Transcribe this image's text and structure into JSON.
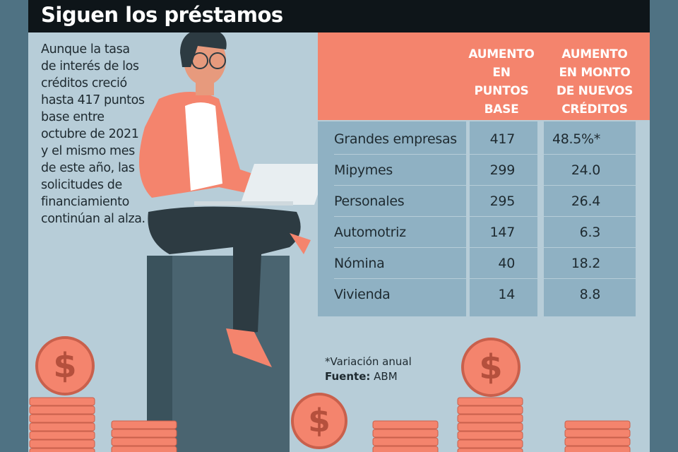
{
  "title": "Siguen los préstamos",
  "intro": "Aunque la tasa de interés de los créditos creció hasta 417 puntos base entre octubre de 2021 y el mismo mes de este año, las solicitudes de financiamiento continúan al alza.",
  "table": {
    "headers": [
      "AUMENTO\nEN\nPUNTOS\nBASE",
      "AUMENTO\nEN MONTO\nDE NUEVOS\nCRÉDITOS"
    ],
    "rows": [
      {
        "label": "Grandes empresas",
        "puntos_base": "417",
        "monto": "48.5%*"
      },
      {
        "label": "Mipymes",
        "puntos_base": "299",
        "monto": "24.0"
      },
      {
        "label": "Personales",
        "puntos_base": "295",
        "monto": "26.4"
      },
      {
        "label": "Automotriz",
        "puntos_base": "147",
        "monto": "6.3"
      },
      {
        "label": "Nómina",
        "puntos_base": "40",
        "monto": "18.2"
      },
      {
        "label": "Vivienda",
        "puntos_base": "14",
        "monto": "8.8"
      }
    ]
  },
  "footnote": "*Variación anual",
  "source_label": "Fuente:",
  "source": "ABM",
  "coin_symbol": "$",
  "colors": {
    "header": "#0e1519",
    "accent": "#f4846d",
    "background": "#b7cdd8",
    "cell": "#8fb1c3",
    "border": "#4f7283"
  }
}
